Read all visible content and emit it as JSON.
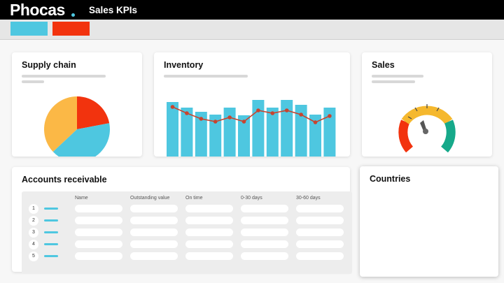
{
  "header": {
    "logo": "Phocas",
    "title": "Sales KPIs"
  },
  "toolbar": {
    "buttons": [
      {
        "color": "#4ec7e0"
      },
      {
        "color": "#f2330e"
      }
    ]
  },
  "colors": {
    "cyan": "#4ec7e0",
    "red": "#f2330e",
    "orange": "#fbb846",
    "yellow": "#f5b82e",
    "teal": "#16a98a",
    "line": "#c8442f"
  },
  "supply_chain": {
    "title": "Supply chain"
  },
  "inventory": {
    "title": "Inventory"
  },
  "sales": {
    "title": "Sales"
  },
  "accounts": {
    "title": "Accounts receivable",
    "columns": [
      "Name",
      "Outstanding value",
      "On time",
      "0-30 days",
      "30-60 days"
    ],
    "rows": [
      "1",
      "2",
      "3",
      "4",
      "5"
    ]
  },
  "countries": {
    "title": "Countries"
  },
  "chart_data": [
    {
      "type": "pie",
      "values": [
        22,
        41,
        37
      ]
    },
    {
      "type": "bar",
      "values": [
        79,
        71,
        65,
        61,
        71,
        60,
        82,
        71,
        82,
        75,
        61,
        71
      ],
      "series": [
        {
          "type": "line",
          "values": [
            72,
            63,
            55,
            51,
            57,
            51,
            67,
            63,
            67,
            61,
            50,
            59
          ]
        }
      ]
    }
  ]
}
